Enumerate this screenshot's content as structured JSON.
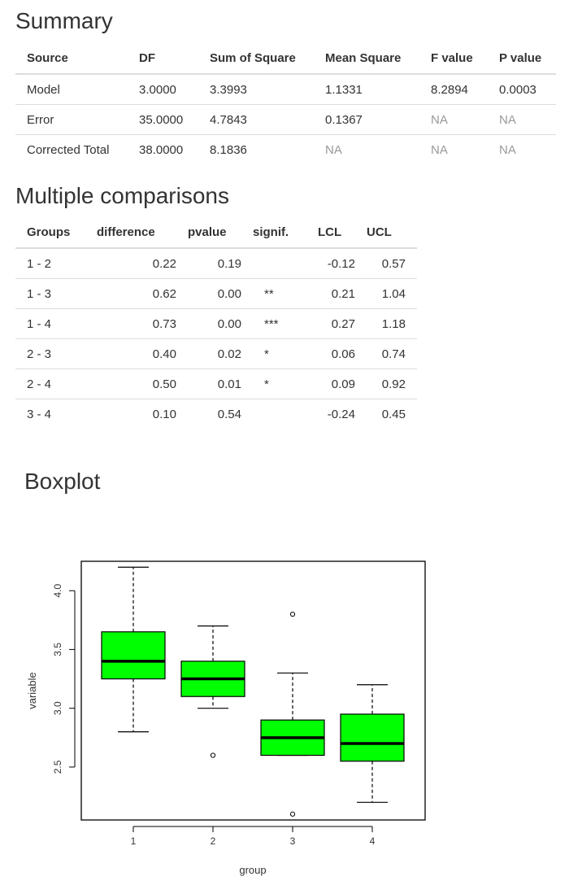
{
  "summary": {
    "heading": "Summary",
    "columns": [
      "Source",
      "DF",
      "Sum of Square",
      "Mean Square",
      "F value",
      "P value"
    ],
    "rows": [
      [
        "Model",
        "3.0000",
        "3.3993",
        "1.1331",
        "8.2894",
        "0.0003"
      ],
      [
        "Error",
        "35.0000",
        "4.7843",
        "0.1367",
        "NA",
        "NA"
      ],
      [
        "Corrected Total",
        "38.0000",
        "8.1836",
        "NA",
        "NA",
        "NA"
      ]
    ]
  },
  "comparisons": {
    "heading": "Multiple comparisons",
    "columns": [
      "Groups",
      "difference",
      "pvalue",
      "signif.",
      "LCL",
      "UCL"
    ],
    "rows": [
      [
        "1 - 2",
        "0.22",
        "0.19",
        "",
        "-0.12",
        "0.57"
      ],
      [
        "1 - 3",
        "0.62",
        "0.00",
        "**",
        "0.21",
        "1.04"
      ],
      [
        "1 - 4",
        "0.73",
        "0.00",
        "***",
        "0.27",
        "1.18"
      ],
      [
        "2 - 3",
        "0.40",
        "0.02",
        "*",
        "0.06",
        "0.74"
      ],
      [
        "2 - 4",
        "0.50",
        "0.01",
        "*",
        "0.09",
        "0.92"
      ],
      [
        "3 - 4",
        "0.10",
        "0.54",
        "",
        "-0.24",
        "0.45"
      ]
    ]
  },
  "boxplot": {
    "heading": "Boxplot"
  },
  "chart_data": {
    "type": "box",
    "title": "",
    "xlabel": "group",
    "ylabel": "variable",
    "categories": [
      "1",
      "2",
      "3",
      "4"
    ],
    "ylim": [
      2.05,
      4.25
    ],
    "yticks": [
      "2.5",
      "3.0",
      "3.5",
      "4.0"
    ],
    "box_color": "#00ff00",
    "groups": [
      {
        "name": "1",
        "whisker_low": 2.8,
        "q1": 3.25,
        "median": 3.4,
        "q3": 3.65,
        "whisker_high": 4.2,
        "outliers": []
      },
      {
        "name": "2",
        "whisker_low": 3.0,
        "q1": 3.1,
        "median": 3.25,
        "q3": 3.4,
        "whisker_high": 3.7,
        "outliers": [
          2.6
        ]
      },
      {
        "name": "3",
        "whisker_low": 2.6,
        "q1": 2.6,
        "median": 2.75,
        "q3": 2.9,
        "whisker_high": 3.3,
        "outliers": [
          3.8,
          2.1
        ]
      },
      {
        "name": "4",
        "whisker_low": 2.2,
        "q1": 2.55,
        "median": 2.7,
        "q3": 2.95,
        "whisker_high": 3.2,
        "outliers": []
      }
    ]
  }
}
